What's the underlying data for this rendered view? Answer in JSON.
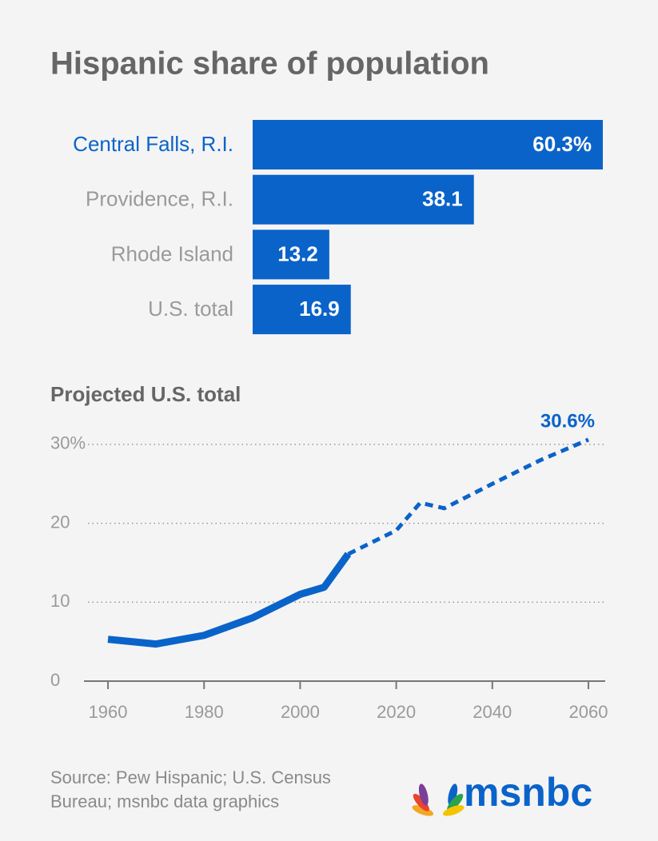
{
  "chart_data": [
    {
      "type": "hbar",
      "title": "Hispanic share of population",
      "categories": [
        "Central Falls, R.I.",
        "Providence, R.I.",
        "Rhode Island",
        "U.S. total"
      ],
      "values": [
        60.3,
        38.1,
        13.2,
        16.9
      ],
      "value_labels": [
        "60.3%",
        "38.1",
        "13.2",
        "16.9"
      ],
      "color": "#0a63c9",
      "label_colors": [
        "#0a63c9",
        "#9a9a9a",
        "#9a9a9a",
        "#9a9a9a"
      ]
    },
    {
      "type": "line",
      "title": "Projected U.S. total",
      "x": [
        1960,
        1970,
        1980,
        1990,
        2000,
        2005,
        2010,
        2020,
        2025,
        2030,
        2040,
        2050,
        2060
      ],
      "series": [
        {
          "color": "#0a63c9",
          "dashed": false,
          "values": [
            5.3,
            4.7,
            5.8,
            8.0,
            11.0,
            11.9,
            16.1,
            null,
            null,
            null,
            null,
            null,
            null
          ]
        },
        {
          "color": "#0a63c9",
          "dashed": true,
          "values": [
            null,
            null,
            null,
            null,
            null,
            null,
            16.1,
            19.1,
            22.6,
            21.9,
            25.0,
            28.0,
            30.6
          ],
          "value_labels": [
            null,
            null,
            null,
            null,
            null,
            null,
            null,
            null,
            null,
            null,
            null,
            null,
            "30.6%"
          ]
        }
      ],
      "xlim": [
        1955,
        2063.5
      ],
      "xticks": [
        1960,
        1980,
        2000,
        2020,
        2040,
        2060
      ],
      "ylim": [
        0,
        31
      ],
      "yticks": [
        0,
        10,
        20,
        {
          "value": 30,
          "label": "30%"
        }
      ],
      "grid": true
    }
  ],
  "source": "Source: Pew Hispanic; U.S. Census Bureau; msnbc data graphics",
  "brand": "msnbc"
}
